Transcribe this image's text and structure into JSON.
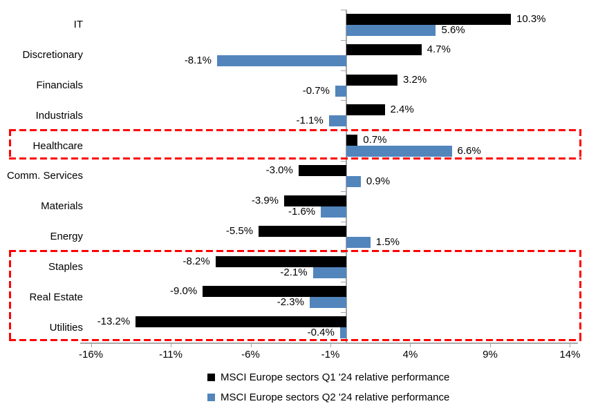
{
  "chart_data": {
    "type": "bar",
    "orientation": "horizontal",
    "categories": [
      "IT",
      "Discretionary",
      "Financials",
      "Industrials",
      "Healthcare",
      "Comm. Services",
      "Materials",
      "Energy",
      "Staples",
      "Real Estate",
      "Utilities"
    ],
    "series": [
      {
        "name": "MSCI Europe sectors Q1 '24 relative performance",
        "color": "#000000",
        "values": [
          10.3,
          4.7,
          3.2,
          2.4,
          0.7,
          -3.0,
          -3.9,
          -5.5,
          -8.2,
          -9.0,
          -13.2
        ],
        "labels": [
          "10.3%",
          "4.7%",
          "3.2%",
          "2.4%",
          "0.7%",
          "-3.0%",
          "-3.9%",
          "-5.5%",
          "-8.2%",
          "-9.0%",
          "-13.2%"
        ]
      },
      {
        "name": "MSCI Europe sectors Q2 '24 relative performance",
        "color": "#5285BC",
        "values": [
          5.6,
          -8.1,
          -0.7,
          -1.1,
          6.6,
          0.9,
          -1.6,
          1.5,
          -2.1,
          -2.3,
          -0.4
        ],
        "labels": [
          "5.6%",
          "-8.1%",
          "-0.7%",
          "-1.1%",
          "6.6%",
          "0.9%",
          "-1.6%",
          "1.5%",
          "-2.1%",
          "-2.3%",
          "-0.4%"
        ]
      }
    ],
    "x_tick_labels": [
      "-16%",
      "-11%",
      "-6%",
      "-1%",
      "4%",
      "9%",
      "14%"
    ],
    "x_tick_values": [
      -16,
      -11,
      -6,
      -1,
      4,
      9,
      14
    ],
    "xlim": [
      -16.5,
      14.5
    ],
    "grid": false,
    "legend_position": "bottom",
    "axis_color": "#A6A6A6",
    "highlight_color": "#FF0000",
    "highlights": [
      {
        "rows": [
          "Healthcare"
        ]
      },
      {
        "rows": [
          "Staples",
          "Real Estate",
          "Utilities"
        ]
      }
    ]
  }
}
